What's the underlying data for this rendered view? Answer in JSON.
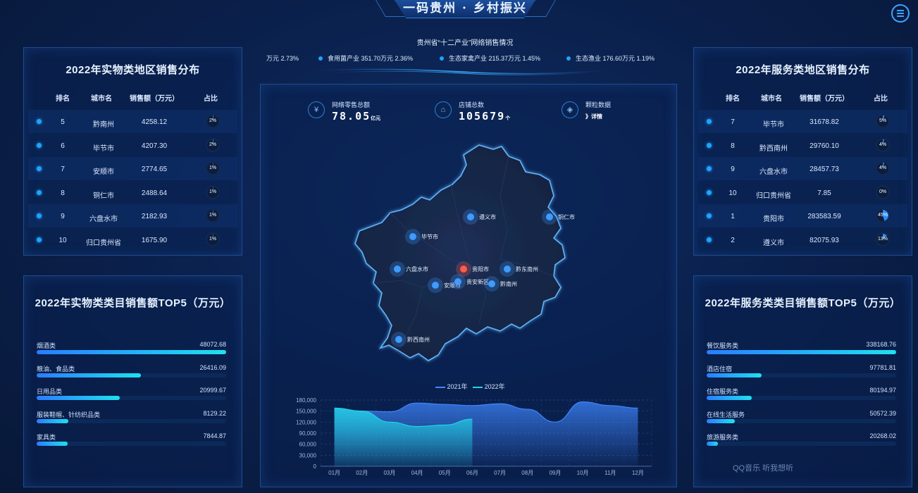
{
  "header": {
    "title": "一码贵州 · 乡村振兴"
  },
  "left_table": {
    "title": "2022年实物类地区销售分布",
    "columns": [
      "排名",
      "城市名",
      "销售额（万元）",
      "占比"
    ],
    "rows": [
      {
        "rank": "5",
        "city": "黔南州",
        "sales": "4258.12",
        "pct": "2%",
        "frac": 0.02
      },
      {
        "rank": "6",
        "city": "毕节市",
        "sales": "4207.30",
        "pct": "2%",
        "frac": 0.02
      },
      {
        "rank": "7",
        "city": "安顺市",
        "sales": "2774.65",
        "pct": "1%",
        "frac": 0.01
      },
      {
        "rank": "8",
        "city": "铜仁市",
        "sales": "2488.64",
        "pct": "1%",
        "frac": 0.01
      },
      {
        "rank": "9",
        "city": "六盘水市",
        "sales": "2182.93",
        "pct": "1%",
        "frac": 0.01
      },
      {
        "rank": "10",
        "city": "归口贵州省",
        "sales": "1675.90",
        "pct": "1%",
        "frac": 0.01
      }
    ]
  },
  "right_table": {
    "title": "2022年服务类地区销售分布",
    "columns": [
      "排名",
      "城市名",
      "销售额（万元）",
      "占比"
    ],
    "rows": [
      {
        "rank": "7",
        "city": "毕节市",
        "sales": "31678.82",
        "pct": "5%",
        "frac": 0.05
      },
      {
        "rank": "8",
        "city": "黔西南州",
        "sales": "29760.10",
        "pct": "4%",
        "frac": 0.04
      },
      {
        "rank": "9",
        "city": "六盘水市",
        "sales": "28457.73",
        "pct": "4%",
        "frac": 0.04
      },
      {
        "rank": "10",
        "city": "归口贵州省",
        "sales": "7.85",
        "pct": "0%",
        "frac": 0.0
      },
      {
        "rank": "1",
        "city": "贵阳市",
        "sales": "283583.59",
        "pct": "45%",
        "frac": 0.45
      },
      {
        "rank": "2",
        "city": "遵义市",
        "sales": "82075.93",
        "pct": "13%",
        "frac": 0.13
      }
    ]
  },
  "left_bars": {
    "title": "2022年实物类类目销售额TOP5（万元）",
    "max": 48072.68,
    "items": [
      {
        "label": "烟酒类",
        "value": "48072.68",
        "num": 48072.68
      },
      {
        "label": "粮油、食品类",
        "value": "26416.09",
        "num": 26416.09
      },
      {
        "label": "日用品类",
        "value": "20999.67",
        "num": 20999.67
      },
      {
        "label": "服装鞋帽、针纺织品类",
        "value": "8129.22",
        "num": 8129.22
      },
      {
        "label": "家具类",
        "value": "7844.87",
        "num": 7844.87
      }
    ]
  },
  "right_bars": {
    "title": "2022年服务类类目销售额TOP5（万元）",
    "max": 338168.76,
    "items": [
      {
        "label": "餐饮服务类",
        "value": "338168.76",
        "num": 338168.76
      },
      {
        "label": "酒店住宿",
        "value": "97781.81",
        "num": 97781.81
      },
      {
        "label": "住宿服务类",
        "value": "80194.97",
        "num": 80194.97
      },
      {
        "label": "在线生活服务",
        "value": "50572.39",
        "num": 50572.39
      },
      {
        "label": "旅游服务类",
        "value": "20268.02",
        "num": 20268.02
      }
    ]
  },
  "ticker": {
    "title": "贵州省“十二产业”网络销售情况",
    "items": [
      "万元 2.73%",
      "食用菌产业 351.70万元 2.36%",
      "生态家禽产业 215.37万元 1.45%",
      "生态渔业 176.60万元 1.19%"
    ]
  },
  "stats": [
    {
      "label": "网络零售总额",
      "value": "78.05",
      "unit": "亿元",
      "icon": "money-icon"
    },
    {
      "label": "店铺总数",
      "value": "105679",
      "unit": "个",
      "icon": "store-icon"
    },
    {
      "label": "颗粒数据",
      "value": "》详情",
      "unit": "",
      "icon": "cube-icon"
    }
  ],
  "map": {
    "cities": [
      {
        "name": "遵义市",
        "highlight": false
      },
      {
        "name": "铜仁市",
        "highlight": false
      },
      {
        "name": "毕节市",
        "highlight": false
      },
      {
        "name": "六盘水市",
        "highlight": false
      },
      {
        "name": "贵阳市",
        "highlight": true
      },
      {
        "name": "黔东南州",
        "highlight": false
      },
      {
        "name": "安顺市",
        "highlight": false
      },
      {
        "name": "贵安新区",
        "highlight": false
      },
      {
        "name": "黔南州",
        "highlight": false
      },
      {
        "name": "黔西南州",
        "highlight": false
      }
    ]
  },
  "chart_data": {
    "type": "area",
    "categories": [
      "01月",
      "02月",
      "03月",
      "04月",
      "05月",
      "06月",
      "07月",
      "08月",
      "09月",
      "10月",
      "11月",
      "12月"
    ],
    "series": [
      {
        "name": "2021年",
        "values": [
          158000,
          150000,
          148000,
          172000,
          168000,
          165000,
          170000,
          155000,
          120000,
          175000,
          165000,
          158000
        ],
        "color": "#3f86ff"
      },
      {
        "name": "2022年",
        "values": [
          158000,
          150000,
          120000,
          108000,
          112000,
          128000,
          null,
          null,
          null,
          null,
          null,
          null
        ],
        "color": "#22d3e6"
      }
    ],
    "yticks": [
      "180,000",
      "150,000",
      "120,000",
      "90,000",
      "60,000",
      "30,000",
      "0"
    ],
    "ylim": [
      0,
      180000
    ],
    "legend": "top-center"
  },
  "watermark": "QQ音乐 听我想听"
}
